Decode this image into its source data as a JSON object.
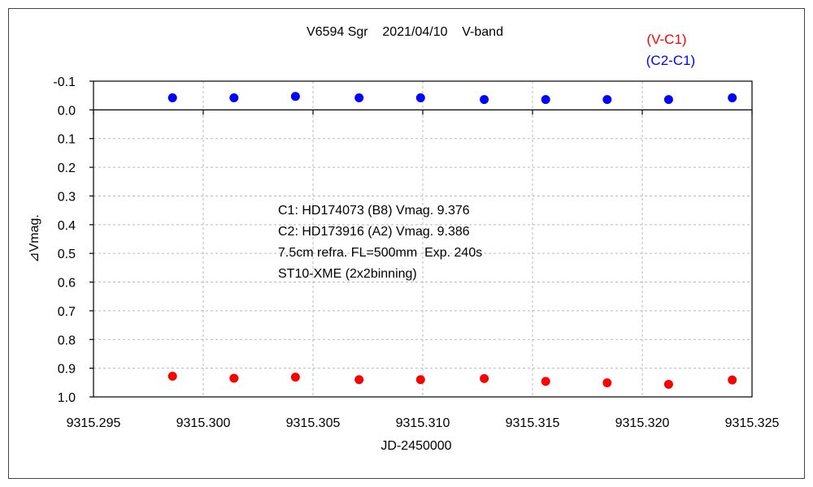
{
  "chart_data": {
    "type": "scatter",
    "title": "V6594 Sgr    2021/04/10    V-band",
    "xlabel": "JD-2450000",
    "ylabel": "⊿Vmag.",
    "xlim": [
      9315.295,
      9315.325
    ],
    "ylim": [
      -0.1,
      1.0
    ],
    "y_inverted": true,
    "x_ticks": [
      9315.295,
      9315.3,
      9315.305,
      9315.31,
      9315.315,
      9315.32,
      9315.325
    ],
    "x_tick_labels": [
      "9315.295",
      "9315.300",
      "9315.305",
      "9315.310",
      "9315.315",
      "9315.320",
      "9315.325"
    ],
    "y_ticks": [
      -0.1,
      0.0,
      0.1,
      0.2,
      0.3,
      0.4,
      0.5,
      0.6,
      0.7,
      0.8,
      0.9,
      1.0
    ],
    "y_tick_labels": [
      "-0.1",
      "0.0",
      "0.1",
      "0.2",
      "0.3",
      "0.4",
      "0.5",
      "0.6",
      "0.7",
      "0.8",
      "0.9",
      "1.0"
    ],
    "grid": true,
    "legend_position": "top-right",
    "series": [
      {
        "name": "(V-C1)",
        "color": "#ff0000",
        "x": [
          9315.2986,
          9315.3014,
          9315.3042,
          9315.3071,
          9315.3099,
          9315.3128,
          9315.3156,
          9315.3184,
          9315.3212,
          9315.3241
        ],
        "y": [
          0.928,
          0.935,
          0.931,
          0.94,
          0.94,
          0.936,
          0.946,
          0.951,
          0.956,
          0.941
        ]
      },
      {
        "name": "(C2-C1)",
        "color": "#0000ff",
        "x": [
          9315.2986,
          9315.3014,
          9315.3042,
          9315.3071,
          9315.3099,
          9315.3128,
          9315.3156,
          9315.3184,
          9315.3212,
          9315.3241
        ],
        "y": [
          -0.042,
          -0.042,
          -0.047,
          -0.042,
          -0.042,
          -0.036,
          -0.036,
          -0.036,
          -0.036,
          -0.042
        ]
      }
    ],
    "annotations": [
      "C1: HD174073 (B8) Vmag. 9.376",
      "C2: HD173916 (A2) Vmag. 9.386",
      "7.5cm refra. FL=500mm  Exp. 240s",
      "ST10-XME (2x2binning)"
    ]
  }
}
